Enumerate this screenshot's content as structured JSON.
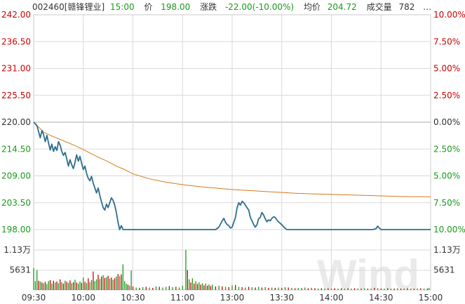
{
  "header": {
    "code": "002460[赣锋锂业]",
    "time": "15:00",
    "price_label": "价",
    "price": "198.00",
    "change_label": "涨跌",
    "change": "-22.00(-10.00%)",
    "avg_label": "均价",
    "avg": "204.72",
    "volume_label": "成交量",
    "volume": "782",
    "more": "…"
  },
  "watermark": "Wind",
  "colors": {
    "price_line": "#2b6f8c",
    "avg_line": "#d47a1e",
    "up": "#cc0000",
    "down": "#1a9a1a",
    "grid": "#d9d9d9",
    "baseline": "#bdbdbd"
  },
  "chart_data": {
    "type": "line",
    "prev_close": 220.0,
    "ylim": [
      198.0,
      242.0
    ],
    "left_ticks": [
      "242.00",
      "236.50",
      "231.00",
      "225.50",
      "220.00",
      "214.50",
      "209.00",
      "203.50",
      "198.00"
    ],
    "right_ticks": [
      "10.00%",
      "7.50%",
      "5.00%",
      "2.50%",
      "0.00%",
      "2.50%",
      "5.00%",
      "7.50%",
      "10.00%"
    ],
    "x_ticks": [
      "09:30",
      "10:00",
      "10:30",
      "11:00",
      "13:00",
      "13:30",
      "14:00",
      "14:30",
      "15:00"
    ],
    "volume_ticks": [
      "1.13万",
      "5631"
    ],
    "volume_max": 11300,
    "price": [
      [
        0,
        220.0
      ],
      [
        2,
        219.3
      ],
      [
        4,
        216.8
      ],
      [
        5,
        218.3
      ],
      [
        6,
        217.5
      ],
      [
        7,
        216.0
      ],
      [
        8,
        217.3
      ],
      [
        9,
        215.7
      ],
      [
        10,
        214.3
      ],
      [
        11,
        215.5
      ],
      [
        12,
        214.0
      ],
      [
        13,
        215.0
      ],
      [
        14,
        214.2
      ],
      [
        15,
        216.0
      ],
      [
        16,
        215.3
      ],
      [
        17,
        214.0
      ],
      [
        18,
        213.2
      ],
      [
        19,
        213.8
      ],
      [
        20,
        212.5
      ],
      [
        21,
        211.0
      ],
      [
        22,
        212.3
      ],
      [
        23,
        211.3
      ],
      [
        24,
        210.5
      ],
      [
        25,
        211.8
      ],
      [
        26,
        213.3
      ],
      [
        27,
        212.0
      ],
      [
        28,
        213.0
      ],
      [
        29,
        211.6
      ],
      [
        30,
        210.3
      ],
      [
        31,
        211.0
      ],
      [
        32,
        209.5
      ],
      [
        33,
        208.5
      ],
      [
        34,
        208.0
      ],
      [
        35,
        208.9
      ],
      [
        36,
        207.5
      ],
      [
        37,
        206.5
      ],
      [
        38,
        205.5
      ],
      [
        39,
        206.5
      ],
      [
        40,
        205.0
      ],
      [
        41,
        203.7
      ],
      [
        42,
        202.5
      ],
      [
        43,
        202.0
      ],
      [
        44,
        203.2
      ],
      [
        45,
        202.5
      ],
      [
        46,
        203.5
      ],
      [
        47,
        204.5
      ],
      [
        48,
        204.0
      ],
      [
        49,
        203.0
      ],
      [
        50,
        201.5
      ],
      [
        51,
        199.5
      ],
      [
        52,
        198.0
      ],
      [
        53,
        198.8
      ],
      [
        54,
        198.0
      ],
      [
        56,
        198.0
      ],
      [
        60,
        198.0
      ],
      [
        70,
        198.0
      ],
      [
        75,
        198.0
      ],
      [
        80,
        198.0
      ],
      [
        85,
        198.0
      ],
      [
        90,
        198.0
      ],
      [
        95,
        198.0
      ],
      [
        100,
        198.0
      ],
      [
        105,
        198.0
      ],
      [
        110,
        198.0
      ],
      [
        112,
        198.5
      ],
      [
        114,
        199.8
      ],
      [
        115,
        200.3
      ],
      [
        116,
        199.5
      ],
      [
        117,
        199.0
      ],
      [
        118,
        198.8
      ],
      [
        119,
        198.3
      ],
      [
        120,
        198.5
      ],
      [
        122,
        200.5
      ],
      [
        123,
        202.5
      ],
      [
        124,
        203.5
      ],
      [
        125,
        203.0
      ],
      [
        126,
        203.8
      ],
      [
        127,
        203.5
      ],
      [
        128,
        203.0
      ],
      [
        129,
        202.5
      ],
      [
        130,
        202.0
      ],
      [
        131,
        200.5
      ],
      [
        132,
        199.8
      ],
      [
        133,
        199.0
      ],
      [
        134,
        198.5
      ],
      [
        135,
        199.0
      ],
      [
        136,
        200.2
      ],
      [
        137,
        200.5
      ],
      [
        138,
        201.5
      ],
      [
        139,
        201.0
      ],
      [
        140,
        200.2
      ],
      [
        141,
        199.6
      ],
      [
        142,
        200.0
      ],
      [
        143,
        199.8
      ],
      [
        144,
        200.3
      ],
      [
        145,
        200.6
      ],
      [
        146,
        200.5
      ],
      [
        147,
        200.0
      ],
      [
        148,
        199.6
      ],
      [
        149,
        199.3
      ],
      [
        150,
        199.0
      ],
      [
        151,
        198.6
      ],
      [
        152,
        198.3
      ],
      [
        153,
        198.0
      ],
      [
        158,
        198.0
      ],
      [
        165,
        198.0
      ],
      [
        175,
        198.0
      ],
      [
        185,
        198.0
      ],
      [
        195,
        198.0
      ],
      [
        200,
        198.0
      ],
      [
        205,
        198.0
      ],
      [
        207,
        198.2
      ],
      [
        208,
        198.7
      ],
      [
        209,
        198.3
      ],
      [
        210,
        198.0
      ],
      [
        215,
        198.0
      ],
      [
        225,
        198.0
      ],
      [
        235,
        198.0
      ],
      [
        240,
        198.0
      ]
    ],
    "avg": [
      [
        0,
        220.0
      ],
      [
        3,
        219.0
      ],
      [
        6,
        218.0
      ],
      [
        10,
        217.3
      ],
      [
        15,
        216.6
      ],
      [
        20,
        215.9
      ],
      [
        25,
        215.2
      ],
      [
        30,
        214.4
      ],
      [
        35,
        213.5
      ],
      [
        40,
        212.7
      ],
      [
        45,
        211.9
      ],
      [
        50,
        211.0
      ],
      [
        55,
        210.3
      ],
      [
        60,
        209.4
      ],
      [
        65,
        208.9
      ],
      [
        70,
        208.4
      ],
      [
        80,
        207.7
      ],
      [
        90,
        207.2
      ],
      [
        100,
        206.8
      ],
      [
        110,
        206.5
      ],
      [
        120,
        206.2
      ],
      [
        130,
        206.0
      ],
      [
        140,
        205.8
      ],
      [
        150,
        205.6
      ],
      [
        160,
        205.4
      ],
      [
        170,
        205.3
      ],
      [
        180,
        205.2
      ],
      [
        190,
        205.1
      ],
      [
        200,
        205.0
      ],
      [
        210,
        204.9
      ],
      [
        220,
        204.8
      ],
      [
        230,
        204.75
      ],
      [
        240,
        204.72
      ]
    ],
    "volume": [
      [
        0,
        6200,
        "down"
      ],
      [
        1,
        2500,
        "down"
      ],
      [
        2,
        5600,
        "down"
      ],
      [
        3,
        2600,
        "up"
      ],
      [
        4,
        2400,
        "down"
      ],
      [
        5,
        2100,
        "up"
      ],
      [
        6,
        1900,
        "down"
      ],
      [
        7,
        2300,
        "up"
      ],
      [
        8,
        1700,
        "down"
      ],
      [
        9,
        2500,
        "down"
      ],
      [
        10,
        2800,
        "up"
      ],
      [
        11,
        1800,
        "down"
      ],
      [
        12,
        2600,
        "up"
      ],
      [
        13,
        2100,
        "down"
      ],
      [
        14,
        2400,
        "up"
      ],
      [
        15,
        1900,
        "down"
      ],
      [
        16,
        3000,
        "up"
      ],
      [
        17,
        2200,
        "down"
      ],
      [
        18,
        1800,
        "up"
      ],
      [
        19,
        2600,
        "down"
      ],
      [
        20,
        2300,
        "up"
      ],
      [
        21,
        2000,
        "down"
      ],
      [
        22,
        2700,
        "up"
      ],
      [
        23,
        1900,
        "down"
      ],
      [
        24,
        2200,
        "up"
      ],
      [
        25,
        2900,
        "down"
      ],
      [
        26,
        2100,
        "up"
      ],
      [
        27,
        1800,
        "down"
      ],
      [
        28,
        2400,
        "down"
      ],
      [
        29,
        2000,
        "up"
      ],
      [
        30,
        3500,
        "down"
      ],
      [
        31,
        2300,
        "up"
      ],
      [
        32,
        1900,
        "down"
      ],
      [
        33,
        3300,
        "up"
      ],
      [
        34,
        2200,
        "down"
      ],
      [
        35,
        2800,
        "down"
      ],
      [
        36,
        5200,
        "up"
      ],
      [
        37,
        2500,
        "down"
      ],
      [
        38,
        3000,
        "down"
      ],
      [
        39,
        4300,
        "up"
      ],
      [
        40,
        3100,
        "down"
      ],
      [
        41,
        3800,
        "up"
      ],
      [
        42,
        4200,
        "down"
      ],
      [
        43,
        3400,
        "up"
      ],
      [
        44,
        3600,
        "down"
      ],
      [
        45,
        4000,
        "up"
      ],
      [
        46,
        3200,
        "down"
      ],
      [
        47,
        3500,
        "up"
      ],
      [
        48,
        2900,
        "down"
      ],
      [
        49,
        3300,
        "up"
      ],
      [
        50,
        3800,
        "down"
      ],
      [
        51,
        4500,
        "up"
      ],
      [
        52,
        3900,
        "down"
      ],
      [
        53,
        4400,
        "up"
      ],
      [
        54,
        7200,
        "down"
      ],
      [
        55,
        2500,
        "down"
      ],
      [
        56,
        1800,
        "down"
      ],
      [
        57,
        1500,
        "up"
      ],
      [
        58,
        1200,
        "down"
      ],
      [
        59,
        5500,
        "down"
      ],
      [
        60,
        1000,
        "up"
      ],
      [
        62,
        700,
        "down"
      ],
      [
        64,
        600,
        "up"
      ],
      [
        66,
        800,
        "down"
      ],
      [
        68,
        900,
        "up"
      ],
      [
        70,
        700,
        "down"
      ],
      [
        72,
        600,
        "up"
      ],
      [
        74,
        1000,
        "down"
      ],
      [
        76,
        900,
        "up"
      ],
      [
        78,
        700,
        "down"
      ],
      [
        80,
        900,
        "down"
      ],
      [
        82,
        1100,
        "up"
      ],
      [
        84,
        800,
        "down"
      ],
      [
        86,
        900,
        "up"
      ],
      [
        88,
        700,
        "down"
      ],
      [
        90,
        1200,
        "down"
      ],
      [
        92,
        11300,
        "down"
      ],
      [
        93,
        5600,
        "up"
      ],
      [
        94,
        3000,
        "down"
      ],
      [
        95,
        2100,
        "up"
      ],
      [
        96,
        3300,
        "down"
      ],
      [
        97,
        1800,
        "up"
      ],
      [
        98,
        2500,
        "down"
      ],
      [
        99,
        1700,
        "up"
      ],
      [
        100,
        2200,
        "down"
      ],
      [
        101,
        1500,
        "up"
      ],
      [
        102,
        1900,
        "down"
      ],
      [
        103,
        1300,
        "up"
      ],
      [
        104,
        1800,
        "down"
      ],
      [
        105,
        1200,
        "up"
      ],
      [
        106,
        1600,
        "down"
      ],
      [
        107,
        1100,
        "up"
      ],
      [
        108,
        1500,
        "down"
      ],
      [
        110,
        1000,
        "up"
      ],
      [
        112,
        1200,
        "down"
      ],
      [
        114,
        1000,
        "up"
      ],
      [
        116,
        900,
        "down"
      ],
      [
        118,
        800,
        "up"
      ],
      [
        120,
        1300,
        "down"
      ],
      [
        122,
        1400,
        "up"
      ],
      [
        124,
        900,
        "down"
      ],
      [
        126,
        800,
        "up"
      ],
      [
        128,
        700,
        "down"
      ],
      [
        130,
        900,
        "up"
      ],
      [
        132,
        800,
        "down"
      ],
      [
        134,
        700,
        "up"
      ],
      [
        136,
        900,
        "down"
      ],
      [
        138,
        700,
        "up"
      ],
      [
        140,
        800,
        "down"
      ],
      [
        142,
        600,
        "up"
      ],
      [
        144,
        700,
        "down"
      ],
      [
        146,
        600,
        "up"
      ],
      [
        148,
        700,
        "down"
      ],
      [
        150,
        600,
        "up"
      ],
      [
        152,
        800,
        "down"
      ],
      [
        154,
        700,
        "up"
      ],
      [
        156,
        600,
        "down"
      ],
      [
        158,
        500,
        "up"
      ],
      [
        160,
        600,
        "down"
      ],
      [
        162,
        500,
        "up"
      ],
      [
        164,
        700,
        "down"
      ],
      [
        166,
        500,
        "up"
      ],
      [
        168,
        600,
        "down"
      ],
      [
        170,
        500,
        "up"
      ],
      [
        172,
        400,
        "down"
      ],
      [
        174,
        500,
        "up"
      ],
      [
        176,
        400,
        "down"
      ],
      [
        178,
        500,
        "up"
      ],
      [
        180,
        400,
        "down"
      ],
      [
        182,
        500,
        "up"
      ],
      [
        184,
        400,
        "down"
      ],
      [
        186,
        500,
        "up"
      ],
      [
        188,
        400,
        "down"
      ],
      [
        190,
        500,
        "up"
      ],
      [
        192,
        400,
        "down"
      ],
      [
        194,
        500,
        "up"
      ],
      [
        196,
        400,
        "down"
      ],
      [
        198,
        400,
        "up"
      ],
      [
        200,
        500,
        "down"
      ],
      [
        202,
        400,
        "up"
      ],
      [
        204,
        400,
        "down"
      ],
      [
        206,
        600,
        "up"
      ],
      [
        208,
        500,
        "down"
      ],
      [
        210,
        400,
        "up"
      ],
      [
        212,
        400,
        "down"
      ],
      [
        214,
        500,
        "up"
      ],
      [
        216,
        400,
        "down"
      ],
      [
        218,
        400,
        "up"
      ],
      [
        220,
        500,
        "down"
      ],
      [
        222,
        400,
        "up"
      ],
      [
        224,
        400,
        "down"
      ],
      [
        226,
        500,
        "up"
      ],
      [
        228,
        400,
        "down"
      ],
      [
        230,
        400,
        "up"
      ],
      [
        232,
        400,
        "down"
      ],
      [
        234,
        500,
        "up"
      ],
      [
        236,
        400,
        "down"
      ],
      [
        238,
        400,
        "up"
      ],
      [
        239,
        600,
        "down"
      ]
    ]
  }
}
